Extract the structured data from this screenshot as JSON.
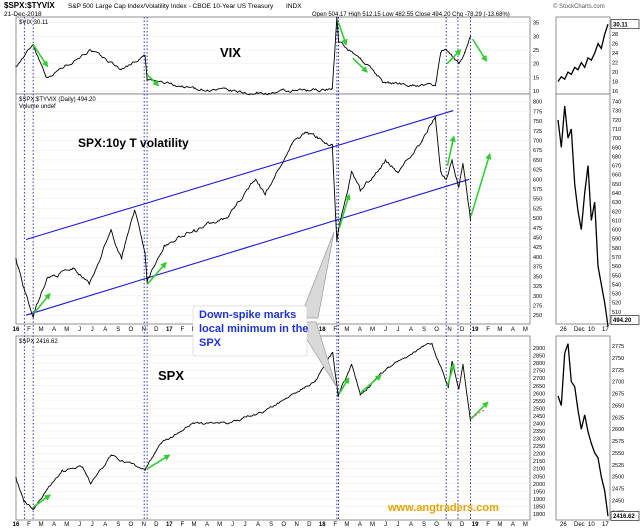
{
  "header": {
    "symbol": "$SPX:$TYVIX",
    "description": "S&P 500 Large Cap Index/Volatility Index - CBOE 10-Year US Treasury",
    "exchange": "INDX",
    "date": "21-Dec-2018",
    "ohlc": "Open 504.17  High 512.15  Low 482.55  Close 494.20  Chg -78.29 (-13.68%)",
    "credit": "© StockCharts.com",
    "watermark": "www.angtraders.com"
  },
  "chart_data": [
    {
      "type": "line",
      "panel": "vix",
      "legend": "$VIX 30.11",
      "annotation": "VIX",
      "last_value_label": "30.11",
      "color": "#000000",
      "ylim": [
        10,
        36
      ],
      "yticks": [
        "35",
        "30",
        "25",
        "20",
        "15",
        "10"
      ],
      "inset_yticks": [
        "30",
        "28",
        "26",
        "24",
        "22",
        "20",
        "18",
        "16"
      ],
      "x": [
        "2016-01-01",
        "2016-02-11",
        "2016-03-15",
        "2016-06-24",
        "2016-09-09",
        "2016-11-04",
        "2016-11-09",
        "2017-03-01",
        "2017-07-26",
        "2017-11-24",
        "2018-01-25",
        "2018-02-05",
        "2018-02-09",
        "2018-04-02",
        "2018-06-01",
        "2018-09-28",
        "2018-10-11",
        "2018-10-24",
        "2018-11-23",
        "2018-12-07",
        "2018-12-21"
      ],
      "values": [
        19,
        27,
        15,
        25,
        18,
        23,
        14,
        11,
        9,
        10,
        11,
        37,
        28,
        22,
        13,
        12,
        24,
        25,
        20,
        24,
        30
      ],
      "series": []
    },
    {
      "type": "line",
      "panel": "ratio",
      "legend": "$SPX:$TYVIX (Daily) 494.20",
      "volume_label": "Volume undef",
      "annotation": "SPX:10y T volatility",
      "callout": "Down-spike marks local minimum in the SPX",
      "last_value_label": "494.20",
      "color": "#000000",
      "ylim": [
        235,
        812
      ],
      "yticks": [
        "800",
        "775",
        "750",
        "725",
        "700",
        "675",
        "650",
        "625",
        "600",
        "575",
        "550",
        "525",
        "500",
        "475",
        "450",
        "425",
        "400",
        "375",
        "350",
        "325",
        "300",
        "275",
        "250"
      ],
      "inset_yticks": [
        "740",
        "730",
        "720",
        "710",
        "700",
        "690",
        "680",
        "670",
        "660",
        "650",
        "640",
        "630",
        "620",
        "610",
        "600",
        "590",
        "580",
        "570",
        "560",
        "550",
        "540",
        "530",
        "520",
        "510"
      ],
      "x": [
        "2016-01-01",
        "2016-01-20",
        "2016-02-11",
        "2016-03-15",
        "2016-05-19",
        "2016-06-24",
        "2016-08-15",
        "2016-09-09",
        "2016-10-10",
        "2016-11-04",
        "2016-11-09",
        "2016-12-20",
        "2017-03-01",
        "2017-05-17",
        "2017-07-26",
        "2017-08-18",
        "2017-10-20",
        "2017-11-24",
        "2018-01-25",
        "2018-02-05",
        "2018-02-09",
        "2018-03-12",
        "2018-04-02",
        "2018-06-01",
        "2018-06-28",
        "2018-08-28",
        "2018-09-28",
        "2018-10-11",
        "2018-10-24",
        "2018-11-07",
        "2018-11-23",
        "2018-12-03",
        "2018-12-21"
      ],
      "values": [
        395,
        320,
        245,
        345,
        370,
        330,
        470,
        395,
        520,
        410,
        335,
        430,
        470,
        500,
        600,
        560,
        690,
        720,
        690,
        440,
        470,
        620,
        570,
        650,
        620,
        700,
        760,
        620,
        600,
        650,
        580,
        640,
        494
      ],
      "series": []
    },
    {
      "type": "line",
      "panel": "spx",
      "legend": "$SPX 2416.62",
      "annotation": "SPX",
      "last_value_label": "2416.62",
      "color": "#000000",
      "ylim": [
        1780,
        2960
      ],
      "yticks": [
        "2900",
        "2850",
        "2800",
        "2750",
        "2700",
        "2650",
        "2600",
        "2550",
        "2500",
        "2450",
        "2400",
        "2350",
        "2300",
        "2250",
        "2200",
        "2150",
        "2100",
        "2050",
        "2000",
        "1950",
        "1900",
        "1850",
        "1800"
      ],
      "inset_yticks": [
        "2775",
        "2750",
        "2725",
        "2700",
        "2675",
        "2650",
        "2625",
        "2600",
        "2575",
        "2550",
        "2525",
        "2500",
        "2475",
        "2450",
        "2425"
      ],
      "x": [
        "2016-01-01",
        "2016-01-20",
        "2016-02-11",
        "2016-04-20",
        "2016-06-08",
        "2016-06-27",
        "2016-08-15",
        "2016-11-04",
        "2016-12-13",
        "2017-03-01",
        "2017-05-17",
        "2017-08-10",
        "2017-12-15",
        "2018-01-26",
        "2018-02-08",
        "2018-03-12",
        "2018-04-02",
        "2018-06-06",
        "2018-08-29",
        "2018-09-20",
        "2018-10-29",
        "2018-11-07",
        "2018-11-23",
        "2018-12-03",
        "2018-12-21"
      ],
      "values": [
        2040,
        1880,
        1830,
        2090,
        2110,
        2000,
        2190,
        2090,
        2270,
        2400,
        2400,
        2470,
        2680,
        2870,
        2580,
        2790,
        2590,
        2770,
        2910,
        2930,
        2640,
        2810,
        2630,
        2790,
        2416
      ],
      "series": []
    }
  ],
  "x_axis": {
    "labels": [
      {
        "date": "2016-01-01",
        "text": "16",
        "bold": true
      },
      {
        "date": "2016-02-01",
        "text": "F"
      },
      {
        "date": "2016-03-01",
        "text": "M"
      },
      {
        "date": "2016-04-01",
        "text": "A"
      },
      {
        "date": "2016-05-01",
        "text": "M"
      },
      {
        "date": "2016-06-01",
        "text": "J"
      },
      {
        "date": "2016-07-01",
        "text": "J"
      },
      {
        "date": "2016-08-01",
        "text": "A"
      },
      {
        "date": "2016-09-01",
        "text": "S"
      },
      {
        "date": "2016-10-01",
        "text": "O"
      },
      {
        "date": "2016-11-01",
        "text": "N"
      },
      {
        "date": "2016-12-01",
        "text": "D"
      },
      {
        "date": "2017-01-01",
        "text": "17",
        "bold": true
      },
      {
        "date": "2017-02-01",
        "text": "F"
      },
      {
        "date": "2017-03-01",
        "text": "M"
      },
      {
        "date": "2017-04-01",
        "text": "A"
      },
      {
        "date": "2017-05-01",
        "text": "M"
      },
      {
        "date": "2017-06-01",
        "text": "J"
      },
      {
        "date": "2017-07-01",
        "text": "J"
      },
      {
        "date": "2017-08-01",
        "text": "A"
      },
      {
        "date": "2017-09-01",
        "text": "S"
      },
      {
        "date": "2017-10-01",
        "text": "O"
      },
      {
        "date": "2017-11-01",
        "text": "N"
      },
      {
        "date": "2017-12-01",
        "text": "D"
      },
      {
        "date": "2018-01-01",
        "text": "18",
        "bold": true
      },
      {
        "date": "2018-02-01",
        "text": "F"
      },
      {
        "date": "2018-03-01",
        "text": "M"
      },
      {
        "date": "2018-04-01",
        "text": "A"
      },
      {
        "date": "2018-05-01",
        "text": "M"
      },
      {
        "date": "2018-06-01",
        "text": "J"
      },
      {
        "date": "2018-07-01",
        "text": "J"
      },
      {
        "date": "2018-08-01",
        "text": "A"
      },
      {
        "date": "2018-09-01",
        "text": "S"
      },
      {
        "date": "2018-10-01",
        "text": "O"
      },
      {
        "date": "2018-11-01",
        "text": "N"
      },
      {
        "date": "2018-12-01",
        "text": "D"
      },
      {
        "date": "2019-01-01",
        "text": "19",
        "bold": true
      },
      {
        "date": "2019-02-01",
        "text": "F"
      },
      {
        "date": "2019-03-01",
        "text": "M"
      },
      {
        "date": "2019-04-01",
        "text": "A"
      },
      {
        "date": "2019-05-01",
        "text": "M"
      }
    ],
    "inset_labels": [
      "26",
      "Dec",
      "10",
      "17"
    ]
  },
  "markers": {
    "dates": [
      "2016-01-21",
      "2016-02-11",
      "2016-11-02",
      "2016-11-09",
      "2018-02-05",
      "2018-02-09",
      "2018-10-24",
      "2018-11-21",
      "2018-12-21"
    ],
    "line_color": "#2020c8"
  },
  "channel": {
    "color": "#1a1ad6",
    "upper": [
      {
        "x": "2016-01-25",
        "y": 445
      },
      {
        "x": "2018-11-10",
        "y": 777
      }
    ],
    "lower": [
      {
        "x": "2016-01-25",
        "y": 250
      },
      {
        "x": "2018-12-18",
        "y": 600
      }
    ]
  },
  "arrows": {
    "color": "#33cc33",
    "vix": [
      {
        "from": [
          "2016-02-11",
          27
        ],
        "to": [
          "2016-03-16",
          19
        ]
      },
      {
        "from": [
          "2016-11-09",
          16
        ],
        "to": [
          "2016-12-06",
          12
        ]
      },
      {
        "from": [
          "2018-02-09",
          35
        ],
        "to": [
          "2018-02-27",
          27
        ]
      },
      {
        "from": [
          "2018-03-15",
          22
        ],
        "to": [
          "2018-04-18",
          17
        ]
      },
      {
        "from": [
          "2018-10-26",
          20
        ],
        "to": [
          "2018-11-27",
          25
        ]
      },
      {
        "from": [
          "2018-12-26",
          29
        ],
        "to": [
          "2019-01-28",
          21
        ]
      }
    ],
    "ratio": [
      {
        "from": [
          "2016-02-13",
          255
        ],
        "to": [
          "2016-03-22",
          305
        ]
      },
      {
        "from": [
          "2016-11-10",
          330
        ],
        "to": [
          "2016-12-24",
          385
        ]
      },
      {
        "from": [
          "2018-02-11",
          475
        ],
        "to": [
          "2018-03-06",
          560
        ]
      },
      {
        "from": [
          "2018-10-27",
          635
        ],
        "to": [
          "2018-11-11",
          710
        ]
      },
      {
        "from": [
          "2018-12-22",
          505
        ],
        "to": [
          "2019-02-05",
          665
        ]
      }
    ],
    "spx": [
      {
        "from": [
          "2016-02-11",
          1845
        ],
        "to": [
          "2016-03-22",
          1925
        ]
      },
      {
        "from": [
          "2016-11-10",
          2100
        ],
        "to": [
          "2017-01-01",
          2190
        ]
      },
      {
        "from": [
          "2018-02-11",
          2600
        ],
        "to": [
          "2018-03-05",
          2700
        ]
      },
      {
        "from": [
          "2018-04-01",
          2600
        ],
        "to": [
          "2018-05-21",
          2720
        ]
      },
      {
        "from": [
          "2018-10-27",
          2650
        ],
        "to": [
          "2018-11-11",
          2790
        ]
      },
      {
        "from": [
          "2018-12-22",
          2430
        ],
        "to": [
          "2019-01-31",
          2540
        ]
      }
    ]
  }
}
